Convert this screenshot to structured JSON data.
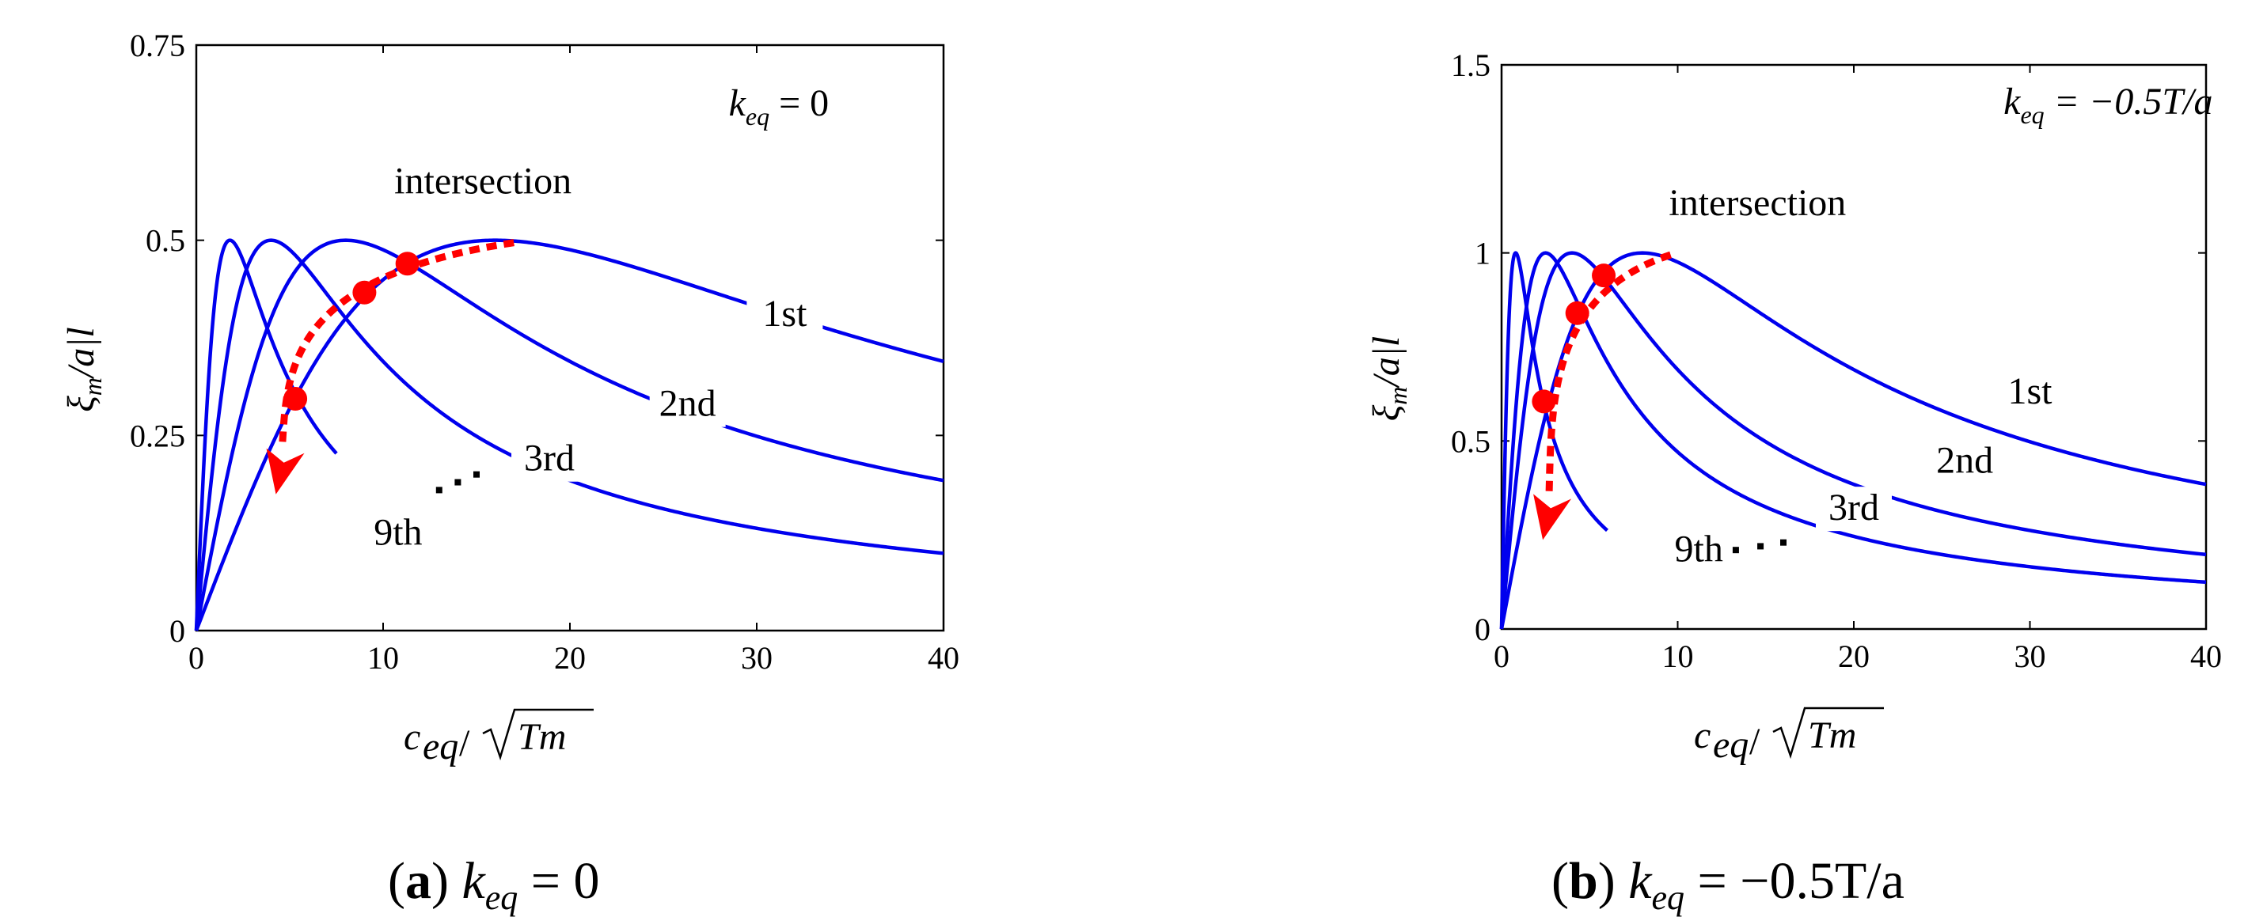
{
  "chart_data": [
    {
      "panel_letter": "a",
      "caption_param": "k",
      "caption_sub": "eq",
      "caption_eq": " = 0",
      "type": "line",
      "xlim": [
        0,
        40
      ],
      "ylim": [
        0,
        0.75
      ],
      "xticks": [
        "0",
        "10",
        "20",
        "30",
        "40"
      ],
      "yticks": [
        "0",
        "0.25",
        "0.5",
        "0.75"
      ],
      "xticks_values": [
        0,
        10,
        20,
        30,
        40
      ],
      "yticks_values": [
        0,
        0.25,
        0.5,
        0.75
      ],
      "xlabel": {
        "main": "c",
        "sub": "eq",
        "sep": "/",
        "root": "Tm"
      },
      "ylabel": {
        "main": "ξ",
        "sub": "m",
        "rest": "/a|l"
      },
      "annotation": {
        "main": "k",
        "sub": "eq",
        "rest": " = 0"
      },
      "intersection_label": "intersection",
      "series": [
        {
          "name": "1st",
          "peak_x": 16,
          "peak_y": 0.5,
          "x_end": 40
        },
        {
          "name": "2nd",
          "peak_x": 8,
          "peak_y": 0.5,
          "x_end": 40
        },
        {
          "name": "3rd",
          "peak_x": 4,
          "peak_y": 0.5,
          "x_end": 40
        },
        {
          "name": "9th",
          "peak_x": 1.8,
          "peak_y": 0.5,
          "x_end": 7.5
        }
      ],
      "intersections": [
        {
          "x": 5.3,
          "y": 0.297
        },
        {
          "x": 9.0,
          "y": 0.433
        },
        {
          "x": 11.3,
          "y": 0.47
        }
      ],
      "arrow": {
        "from": [
          17,
          0.497
        ],
        "to": [
          4.6,
          0.205
        ]
      },
      "series_labels": [
        {
          "name": "1st",
          "x": 31.5,
          "y": 0.39
        },
        {
          "name": "2nd",
          "x": 26.3,
          "y": 0.275
        },
        {
          "name": "3rd",
          "x": 18.9,
          "y": 0.205
        },
        {
          "name": "9th",
          "x": 10.8,
          "y": 0.11
        }
      ],
      "ellipsis": [
        [
          13.0,
          0.18
        ],
        [
          14.0,
          0.19
        ],
        [
          15.0,
          0.2
        ]
      ],
      "annotation_pos": [
        28.5,
        0.66
      ],
      "intersection_pos": [
        10.6,
        0.56
      ]
    },
    {
      "panel_letter": "b",
      "caption_param": "k",
      "caption_sub": "eq",
      "caption_eq": " = −0.5T/a",
      "type": "line",
      "xlim": [
        0,
        40
      ],
      "ylim": [
        0,
        1.5
      ],
      "xticks": [
        "0",
        "10",
        "20",
        "30",
        "40"
      ],
      "yticks": [
        "0",
        "0.5",
        "1",
        "1.5"
      ],
      "xticks_values": [
        0,
        10,
        20,
        30,
        40
      ],
      "yticks_values": [
        0,
        0.5,
        1,
        1.5
      ],
      "xlabel": {
        "main": "c",
        "sub": "eq",
        "sep": "/",
        "root": "Tm"
      },
      "ylabel": {
        "main": "ξ",
        "sub": "m",
        "rest": "/a|l"
      },
      "annotation": {
        "main": "k",
        "sub": "eq",
        "rest": " = −0.5T/a"
      },
      "intersection_label": "intersection",
      "series": [
        {
          "name": "1st",
          "peak_x": 8,
          "peak_y": 1.0,
          "x_end": 40
        },
        {
          "name": "2nd",
          "peak_x": 4,
          "peak_y": 1.0,
          "x_end": 40
        },
        {
          "name": "3rd",
          "peak_x": 2.5,
          "peak_y": 1.0,
          "x_end": 40
        },
        {
          "name": "9th",
          "peak_x": 0.8,
          "peak_y": 1.0,
          "x_end": 6
        }
      ],
      "intersections": [
        {
          "x": 2.4,
          "y": 0.605
        },
        {
          "x": 4.3,
          "y": 0.84
        },
        {
          "x": 5.8,
          "y": 0.94
        }
      ],
      "arrow": {
        "from": [
          9.6,
          0.995
        ],
        "to": [
          2.7,
          0.3
        ]
      },
      "series_labels": [
        {
          "name": "1st",
          "x": 30.0,
          "y": 0.6
        },
        {
          "name": "2nd",
          "x": 26.3,
          "y": 0.415
        },
        {
          "name": "3rd",
          "x": 20.0,
          "y": 0.29
        },
        {
          "name": "9th",
          "x": 11.2,
          "y": 0.18
        }
      ],
      "ellipsis": [
        [
          13.3,
          0.21
        ],
        [
          14.7,
          0.22
        ],
        [
          16.0,
          0.23
        ]
      ],
      "annotation_pos": [
        28.5,
        1.37
      ],
      "intersection_pos": [
        9.5,
        1.1
      ]
    }
  ]
}
